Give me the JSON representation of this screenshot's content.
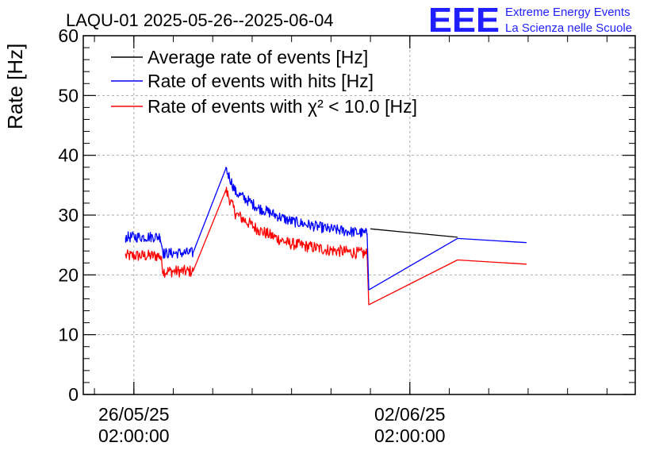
{
  "header": {
    "title": "LAQU-01 2025-05-26--2025-06-04"
  },
  "logo": {
    "mark": "EEE",
    "line1": "Extreme Energy Events",
    "line2": "La Scienza nelle Scuole",
    "color": "#1f1fff"
  },
  "chart_data": {
    "type": "line",
    "title": "LAQU-01 2025-05-26--2025-06-04",
    "xlabel": "",
    "ylabel": "Rate [Hz]",
    "ylim": [
      0,
      60
    ],
    "yticks": [
      0,
      10,
      20,
      30,
      40,
      50,
      60
    ],
    "xlim": [
      "2025-05-24 19:12",
      "2025-06-07 19:12"
    ],
    "xticks": [
      {
        "x": "2025-05-26 02:00:00",
        "label_date": "26/05/25",
        "label_time": "02:00:00"
      },
      {
        "x": "2025-06-02 02:00:00",
        "label_date": "02/06/25",
        "label_time": "02:00:00"
      }
    ],
    "grid": true,
    "legend_position": "top-left",
    "series": [
      {
        "name": "Average rate of events [Hz]",
        "color": "#000000",
        "points": [
          [
            "2025-06-01 02:00",
            27.7
          ],
          [
            "2025-06-03 07:00",
            26.3
          ]
        ]
      },
      {
        "name": "Rate of events with hits [Hz]",
        "color": "#0000ff",
        "points": [
          [
            "2025-05-25 21:00",
            26.3
          ],
          [
            "2025-05-26 18:00",
            26.4
          ],
          [
            "2025-05-26 20:00",
            23.6
          ],
          [
            "2025-05-27 14:00",
            23.7
          ],
          [
            "2025-05-28 10:00",
            37.8
          ],
          [
            "2025-05-28 16:00",
            33.8
          ],
          [
            "2025-05-29 06:00",
            31.2
          ],
          [
            "2025-05-30 00:00",
            29.1
          ],
          [
            "2025-05-31 00:00",
            27.7
          ],
          [
            "2025-06-01 00:00",
            26.9
          ],
          [
            "2025-06-01 01:00",
            17.5
          ],
          [
            "2025-06-03 07:00",
            26.1
          ],
          [
            "2025-06-05 01:00",
            25.4
          ]
        ]
      },
      {
        "name": "Rate of events with χ² < 10.0 [Hz]",
        "color": "#ff0000",
        "points": [
          [
            "2025-05-25 21:00",
            23.2
          ],
          [
            "2025-05-26 18:00",
            23.2
          ],
          [
            "2025-05-26 20:00",
            20.6
          ],
          [
            "2025-05-27 14:00",
            20.6
          ],
          [
            "2025-05-28 10:00",
            34.2
          ],
          [
            "2025-05-28 16:00",
            30.2
          ],
          [
            "2025-05-29 06:00",
            27.5
          ],
          [
            "2025-05-30 00:00",
            25.3
          ],
          [
            "2025-05-31 00:00",
            24.2
          ],
          [
            "2025-06-01 00:00",
            23.5
          ],
          [
            "2025-06-01 01:00",
            15.0
          ],
          [
            "2025-06-03 07:00",
            22.5
          ],
          [
            "2025-06-05 01:00",
            21.8
          ]
        ]
      }
    ]
  }
}
